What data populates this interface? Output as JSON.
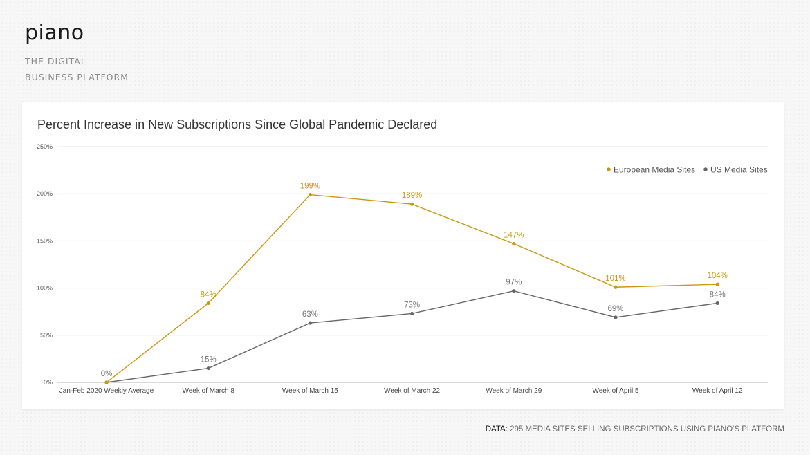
{
  "brand": {
    "logo": "piano",
    "tagline_line1": "THE DIGITAL",
    "tagline_line2": "BUSINESS PLATFORM"
  },
  "footer": {
    "lead": "DATA:",
    "text": " 295 MEDIA SITES SELLING SUBSCRIPTIONS USING PIANO'S PLATFORM"
  },
  "chart_data": {
    "type": "line",
    "title": "Percent Increase in New Subscriptions Since Global Pandemic Declared",
    "xlabel": "",
    "ylabel": "",
    "ylim": [
      0,
      250
    ],
    "yticks": [
      0,
      50,
      100,
      150,
      200,
      250
    ],
    "ytick_labels": [
      "0%",
      "50%",
      "100%",
      "150%",
      "200%",
      "250%"
    ],
    "grid": true,
    "legend_position": "top-right",
    "categories": [
      "Jan-Feb 2020 Weekly Average",
      "Week of March 8",
      "Week of March 15",
      "Week of March 22",
      "Week of March 29",
      "Week of April 5",
      "Week of April 12"
    ],
    "series": [
      {
        "name": "European Media Sites",
        "color": "#c9980f",
        "values": [
          0,
          84,
          199,
          189,
          147,
          101,
          104
        ],
        "labels": [
          "",
          "84%",
          "199%",
          "189%",
          "147%",
          "101%",
          "104%"
        ]
      },
      {
        "name": "US Media Sites",
        "color": "#666666",
        "values": [
          0,
          15,
          63,
          73,
          97,
          69,
          84
        ],
        "labels": [
          "0%",
          "15%",
          "63%",
          "73%",
          "97%",
          "69%",
          "84%"
        ]
      }
    ]
  }
}
